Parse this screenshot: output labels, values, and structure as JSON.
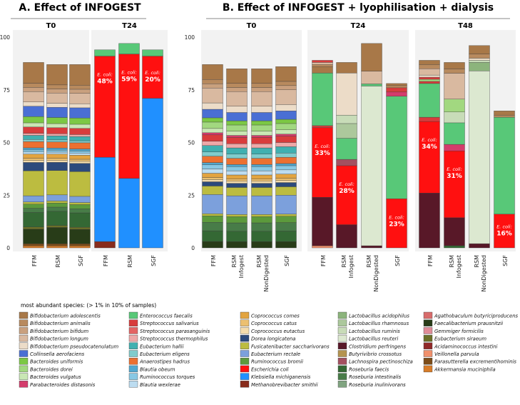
{
  "figure": {
    "panelA_title": "A. Effect of INFOGEST",
    "panelB_title": "B. Effect of INFOGEST + lyophilisation + dialysis",
    "legend_title": "most abundant species: (> 1% in 10% of samples)",
    "annotation_prefix": "E. coli:"
  },
  "chart_data": {
    "type": "stacked-bar",
    "y_range": [
      0,
      100
    ],
    "y_ticks": [
      0,
      25,
      50,
      75,
      100
    ],
    "panels": [
      {
        "id": "A",
        "title": "A. Effect of INFOGEST",
        "facets": [
          {
            "title": "T0",
            "bars": [
              {
                "label": "FFM",
                "total": 88,
                "ecoli": null
              },
              {
                "label": "RSM",
                "total": 87,
                "ecoli": null
              },
              {
                "label": "SGF",
                "total": 87,
                "ecoli": null
              }
            ]
          },
          {
            "title": "T24",
            "bars": [
              {
                "label": "FFM",
                "total": 94,
                "ecoli": "48%"
              },
              {
                "label": "RSM",
                "total": 97,
                "ecoli": "59%"
              },
              {
                "label": "SGF",
                "total": 94,
                "ecoli": "20%"
              }
            ]
          }
        ]
      },
      {
        "id": "B",
        "title": "B. Effect of INFOGEST + lyophilisation + dialysis",
        "facets": [
          {
            "title": "T0",
            "bars": [
              {
                "label": "FFM",
                "total": 87,
                "ecoli": null
              },
              {
                "label": "RSM Infogest",
                "total": 85,
                "ecoli": null
              },
              {
                "label": "RSM NonDigested",
                "total": 85,
                "ecoli": null
              },
              {
                "label": "SGF",
                "total": 86,
                "ecoli": null
              }
            ]
          },
          {
            "title": "T24",
            "bars": [
              {
                "label": "FFM",
                "total": 89,
                "ecoli": "33%"
              },
              {
                "label": "RSM Infogest",
                "total": 88,
                "ecoli": "28%"
              },
              {
                "label": "RSM NonDigested",
                "total": 97,
                "ecoli": null
              },
              {
                "label": "SGF",
                "total": 78,
                "ecoli": "23%"
              }
            ]
          },
          {
            "title": "T48",
            "bars": [
              {
                "label": "FFM",
                "total": 89,
                "ecoli": "34%"
              },
              {
                "label": "RSM Infogest",
                "total": 88,
                "ecoli": "31%"
              },
              {
                "label": "RSM NonDigested",
                "total": 96,
                "ecoli": null
              },
              {
                "label": "SGF",
                "total": 65,
                "ecoli": "16%"
              }
            ]
          }
        ]
      }
    ],
    "legend": [
      {
        "name": "Bifidobacterium adolescentis",
        "color": "#a87848"
      },
      {
        "name": "Bifidobacterium animalis",
        "color": "#b88a5e"
      },
      {
        "name": "Bifidobacterium bifidum",
        "color": "#c9a07e"
      },
      {
        "name": "Bifidobacterium longum",
        "color": "#d9b9a0"
      },
      {
        "name": "Bifidobacterium pseudocatenulatum",
        "color": "#ecdcc8"
      },
      {
        "name": "Collinsella aerofaciens",
        "color": "#4a6fd4"
      },
      {
        "name": "Bacteroides uniformis",
        "color": "#7cc844"
      },
      {
        "name": "Bacteroides dorei",
        "color": "#a2d880"
      },
      {
        "name": "Bacteroides vulgatus",
        "color": "#c9e7b4"
      },
      {
        "name": "Parabacteroides distasonis",
        "color": "#d43c6c"
      },
      {
        "name": "Enterococcus faecalis",
        "color": "#58c878"
      },
      {
        "name": "Streptococcus salivarius",
        "color": "#d83c3c"
      },
      {
        "name": "Streptococcus parasanguinis",
        "color": "#e46464"
      },
      {
        "name": "Streptococcus thermophilus",
        "color": "#eea8a8"
      },
      {
        "name": "Eubacterium hallii",
        "color": "#40b0b0"
      },
      {
        "name": "Eubacterium eligens",
        "color": "#80cccc"
      },
      {
        "name": "Anaerostipes hadrus",
        "color": "#ec7030"
      },
      {
        "name": "Blautia obeum",
        "color": "#50a8d0"
      },
      {
        "name": "Ruminococcus torques",
        "color": "#88c8e4"
      },
      {
        "name": "Blautia wexlerae",
        "color": "#bcdcf0"
      },
      {
        "name": "Coprococcus comes",
        "color": "#e2a440"
      },
      {
        "name": "Coprococcus catus",
        "color": "#ecc070"
      },
      {
        "name": "Coprococcus eutactus",
        "color": "#f4dcac"
      },
      {
        "name": "Dorea longicatena",
        "color": "#2c4a7c"
      },
      {
        "name": "Fusicatenibacter saccharivorans",
        "color": "#bcbc40"
      },
      {
        "name": "Eubacterium rectale",
        "color": "#7ca0dc"
      },
      {
        "name": "Ruminococcus bromii",
        "color": "#5c9a3c"
      },
      {
        "name": "Escherichia coli",
        "color": "#ff1010"
      },
      {
        "name": "Klebsiella michiganensis",
        "color": "#2090ff"
      },
      {
        "name": "Methanobrevibacter smithii",
        "color": "#882c1c"
      },
      {
        "name": "Lactobacillus acidophilus",
        "color": "#8cb47c"
      },
      {
        "name": "Lactobacillus rhamnosus",
        "color": "#acc89c"
      },
      {
        "name": "Lactobacillus ruminis",
        "color": "#c8dcb8"
      },
      {
        "name": "Lactobacillus reuteri",
        "color": "#dce8d0"
      },
      {
        "name": "Clostridium perfringens",
        "color": "#581828"
      },
      {
        "name": "Butyrivibrio crossotus",
        "color": "#b49450"
      },
      {
        "name": "Lachnospira pectinoschiza",
        "color": "#a45060"
      },
      {
        "name": "Roseburia faecis",
        "color": "#346834"
      },
      {
        "name": "Roseburia intestinalis",
        "color": "#487c48"
      },
      {
        "name": "Roseburia inulinivorans",
        "color": "#80a480"
      },
      {
        "name": "Agathobaculum butyriciproducens",
        "color": "#d86c6c"
      },
      {
        "name": "Faecalibacterium prausnitzii",
        "color": "#283c18"
      },
      {
        "name": "Gemmiger formicilis",
        "color": "#e08c98"
      },
      {
        "name": "Eubacterium siraeum",
        "color": "#6c7028"
      },
      {
        "name": "Acidaminococcus intestini",
        "color": "#902828"
      },
      {
        "name": "Veillonella parvula",
        "color": "#f0906c"
      },
      {
        "name": "Parasutterella excrementihominis",
        "color": "#7c4c18"
      },
      {
        "name": "Akkermansia muciniphila",
        "color": "#d87c28"
      }
    ]
  }
}
